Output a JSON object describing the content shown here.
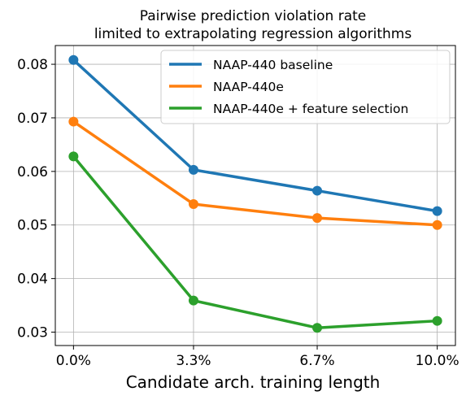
{
  "chart_data": {
    "type": "line",
    "title": "Pairwise prediction violation rate",
    "subtitle": "limited to extrapolating regression algorithms",
    "xlabel": "Candidate arch. training length",
    "ylabel": "",
    "categories": [
      "0.0%",
      "3.3%",
      "6.7%",
      "10.0%"
    ],
    "x": [
      0.0,
      3.3,
      6.7,
      10.0
    ],
    "yticks": [
      "0.03",
      "0.04",
      "0.05",
      "0.06",
      "0.07",
      "0.08"
    ],
    "ylim": [
      0.0275,
      0.0835
    ],
    "grid": true,
    "legend_position": "top-right",
    "series": [
      {
        "name": "NAAP-440 baseline",
        "color": "#1f77b4",
        "values": [
          0.0808,
          0.0603,
          0.0564,
          0.0526
        ]
      },
      {
        "name": "NAAP-440e",
        "color": "#ff7f0e",
        "values": [
          0.0693,
          0.0539,
          0.0513,
          0.05
        ]
      },
      {
        "name": "NAAP-440e + feature selection",
        "color": "#2ca02c",
        "values": [
          0.0628,
          0.0359,
          0.0308,
          0.0321
        ]
      }
    ]
  }
}
